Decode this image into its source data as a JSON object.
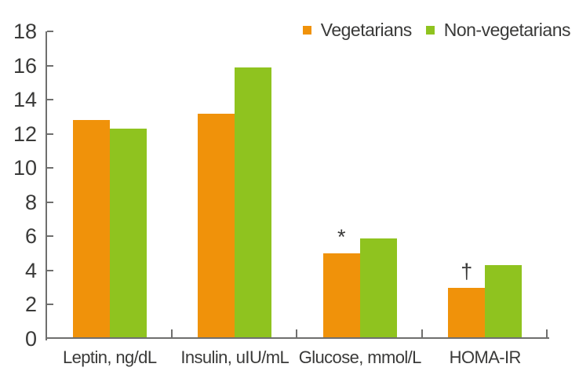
{
  "colors": {
    "vegetarians": "#F0920A",
    "non_vegetarians": "#8FC31F",
    "text": "#3A3A39",
    "axis": "#6F6F6E",
    "background": "#FFFFFF"
  },
  "chart_data": {
    "type": "bar",
    "title": "",
    "xlabel": "",
    "ylabel": "",
    "categories": [
      "Leptin, ng/dL",
      "Insulin, uIU/mL",
      "Glucose, mmol/L",
      "HOMA-IR"
    ],
    "series": [
      {
        "name": "Vegetarians",
        "color": "#F0920A",
        "values": [
          12.8,
          13.2,
          5.0,
          3.0
        ]
      },
      {
        "name": "Non-vegetarians",
        "color": "#8FC31F",
        "values": [
          12.3,
          15.9,
          5.9,
          4.3
        ]
      }
    ],
    "ylim": [
      0,
      18
    ],
    "yticks": [
      0,
      2,
      4,
      6,
      8,
      10,
      12,
      14,
      16,
      18
    ],
    "grid": false,
    "legend_position": "top-right",
    "annotations": [
      {
        "text": "*",
        "category_index": 2,
        "series_index": 0
      },
      {
        "text": "†",
        "category_index": 3,
        "series_index": 0
      }
    ]
  }
}
